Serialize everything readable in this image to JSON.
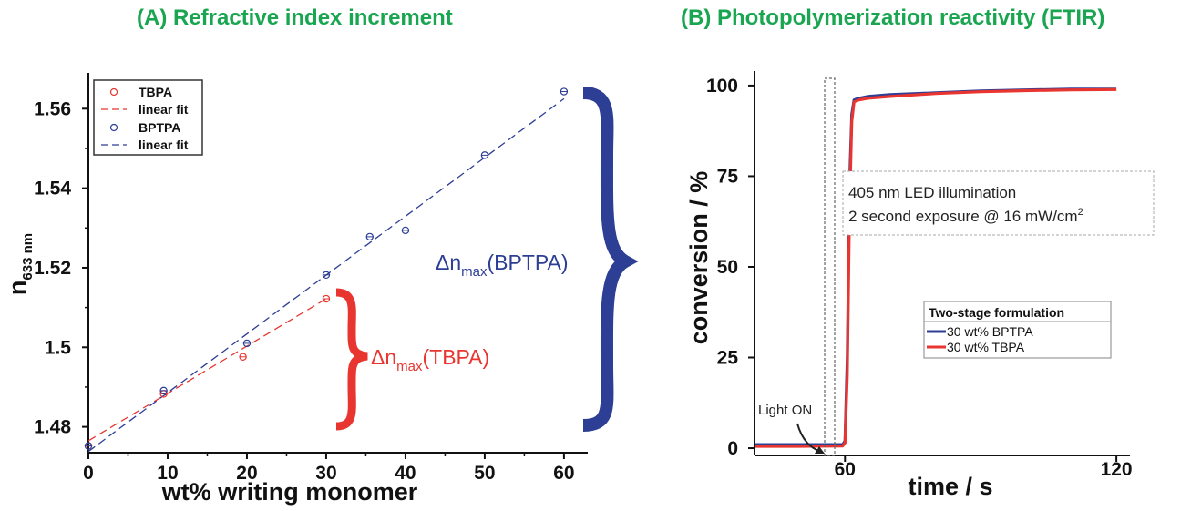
{
  "colors": {
    "title": "#1aa650",
    "tbpa": "#e8352f",
    "bptpa": "#2d3e95",
    "axis": "#111111"
  },
  "chart_data": [
    {
      "type": "scatter",
      "title": "(A) Refractive index increment",
      "xlabel": "wt% writing monomer",
      "ylabel_main": "n",
      "ylabel_sub": "633 nm",
      "xlim": [
        0,
        63
      ],
      "ylim": [
        1.4735,
        1.569
      ],
      "xticks": [
        "0",
        "10",
        "20",
        "30",
        "40",
        "50",
        "60"
      ],
      "yticks": [
        "1.48",
        "1.5",
        "1.52",
        "1.54",
        "1.56"
      ],
      "grid": false,
      "legend_position": "top-left",
      "legend": [
        "TBPA",
        "linear fit",
        "BPTPA",
        "linear fit"
      ],
      "series": [
        {
          "name": "TBPA",
          "marker": "circle",
          "x": [
            0,
            9.5,
            19.5,
            30
          ],
          "y": [
            1.4752,
            1.4883,
            1.4976,
            1.5122
          ]
        },
        {
          "name": "linear fit",
          "style": "dashed",
          "x": [
            0,
            30
          ],
          "y": [
            1.4765,
            1.5122
          ]
        },
        {
          "name": "BPTPA",
          "marker": "circle",
          "x": [
            0,
            9.5,
            20,
            30,
            35.5,
            40,
            50,
            60
          ],
          "y": [
            1.4752,
            1.4891,
            1.501,
            1.5182,
            1.5278,
            1.5294,
            1.5483,
            1.5643
          ]
        },
        {
          "name": "linear fit",
          "style": "dashed",
          "x": [
            0,
            60
          ],
          "y": [
            1.4738,
            1.5625
          ]
        }
      ],
      "annotations": {
        "tbpa_delta": {
          "prefix": "Δn",
          "sub": "max",
          "suffix": "(TBPA)"
        },
        "bptpa_delta": {
          "prefix": "Δn",
          "sub": "max",
          "suffix": "(BPTPA)"
        }
      }
    },
    {
      "type": "line",
      "title": "(B) Photopolymerization reactivity (FTIR)",
      "xlabel": "time / s",
      "ylabel": "conversion / %",
      "xlim": [
        40,
        123
      ],
      "ylim": [
        -2,
        104
      ],
      "xticks": [
        "60",
        "120"
      ],
      "yticks": [
        "0",
        "25",
        "50",
        "75",
        "100"
      ],
      "grid": false,
      "legend_position": "center-right",
      "legend_title": "Two-stage formulation",
      "series": [
        {
          "name": "30 wt% BPTPA",
          "x": [
            40,
            50,
            59.5,
            60,
            60.5,
            61,
            61.5,
            62,
            63,
            65,
            70,
            80,
            90,
            100,
            110,
            120
          ],
          "y": [
            1,
            1,
            1,
            2,
            25,
            72,
            92,
            96,
            96.5,
            97,
            97.5,
            98,
            98.5,
            98.8,
            99,
            99
          ]
        },
        {
          "name": "30 wt% TBPA",
          "x": [
            40,
            50,
            59.5,
            60,
            60.5,
            61,
            61.5,
            62,
            63,
            65,
            70,
            80,
            90,
            100,
            110,
            120
          ],
          "y": [
            0.5,
            0.5,
            0.6,
            1.5,
            20,
            65,
            90,
            95.5,
            96,
            96.5,
            97,
            97.8,
            98.3,
            98.6,
            98.8,
            98.9
          ]
        }
      ],
      "annotations": {
        "light_on": "Light ON",
        "illumination_line1": "405 nm LED illumination",
        "illumination_line2_main": "2 second exposure @ 16 mW/cm",
        "illumination_line2_sup": "2"
      }
    }
  ]
}
